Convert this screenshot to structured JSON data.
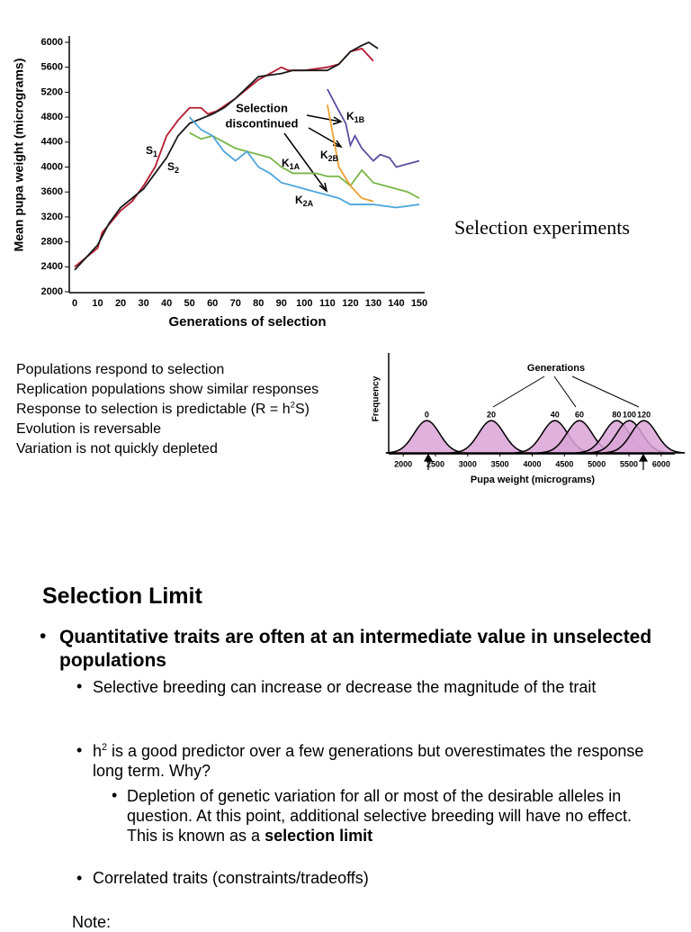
{
  "chart_data": [
    {
      "type": "line",
      "x_label": "Generations of selection",
      "y_label": "Mean pupa weight (micrograms)",
      "xlim": [
        0,
        150
      ],
      "ylim": [
        2000,
        6000
      ],
      "xticks": [
        0,
        10,
        20,
        30,
        40,
        50,
        60,
        70,
        80,
        90,
        100,
        110,
        120,
        130,
        140,
        150
      ],
      "yticks": [
        2000,
        2400,
        2800,
        3200,
        3600,
        4000,
        4400,
        4800,
        5200,
        5600,
        6000
      ],
      "annotation": [
        "Selection",
        "discontinued"
      ],
      "series": [
        {
          "name": "S1",
          "color": "#b5192f",
          "x": [
            0,
            5,
            10,
            12,
            20,
            25,
            30,
            35,
            37,
            40,
            45,
            50,
            55,
            58,
            62,
            70,
            80,
            90,
            93,
            100,
            110,
            115,
            120,
            125,
            130
          ],
          "values": [
            2400,
            2550,
            2700,
            2950,
            3300,
            3450,
            3700,
            4000,
            4200,
            4500,
            4750,
            4950,
            4950,
            4850,
            4900,
            5100,
            5400,
            5600,
            5550,
            5550,
            5600,
            5650,
            5850,
            5900,
            5700
          ]
        },
        {
          "name": "S2",
          "color": "#1a1a1a",
          "x": [
            0,
            10,
            15,
            20,
            25,
            30,
            35,
            40,
            45,
            50,
            60,
            65,
            70,
            80,
            90,
            95,
            100,
            110,
            115,
            120,
            125,
            128,
            132
          ],
          "values": [
            2350,
            2750,
            3100,
            3350,
            3500,
            3650,
            3900,
            4150,
            4500,
            4700,
            4850,
            4950,
            5100,
            5450,
            5500,
            5550,
            5550,
            5550,
            5650,
            5850,
            5950,
            6000,
            5900
          ]
        },
        {
          "name": "K1A",
          "color": "#7ab648",
          "x": [
            50,
            55,
            60,
            65,
            70,
            80,
            85,
            90,
            95,
            100,
            105,
            110,
            115,
            120,
            125,
            130,
            135,
            140,
            145,
            150
          ],
          "values": [
            4550,
            4450,
            4500,
            4400,
            4300,
            4200,
            4150,
            4000,
            3900,
            3900,
            3900,
            3850,
            3850,
            3700,
            3950,
            3750,
            3700,
            3650,
            3600,
            3500
          ]
        },
        {
          "name": "K2A",
          "color": "#4ea5dd",
          "x": [
            50,
            55,
            60,
            65,
            70,
            75,
            80,
            85,
            90,
            95,
            100,
            105,
            110,
            115,
            120,
            130,
            140,
            150
          ],
          "values": [
            4800,
            4600,
            4500,
            4250,
            4100,
            4250,
            4000,
            3900,
            3750,
            3700,
            3650,
            3600,
            3550,
            3500,
            3400,
            3400,
            3350,
            3400
          ]
        },
        {
          "name": "K1B",
          "color": "#5b4ea0",
          "x": [
            110,
            115,
            118,
            120,
            122,
            125,
            130,
            133,
            137,
            140,
            145,
            150
          ],
          "values": [
            5250,
            4900,
            4700,
            4350,
            4500,
            4300,
            4100,
            4200,
            4150,
            4000,
            4050,
            4100
          ]
        },
        {
          "name": "K2B",
          "color": "#f0a030",
          "x": [
            110,
            115,
            120,
            125,
            130
          ],
          "values": [
            5000,
            4000,
            3700,
            3500,
            3450
          ]
        }
      ]
    },
    {
      "type": "distribution",
      "title": "Generations",
      "x_label": "Pupa weight (micrograms)",
      "y_label": "Frequency",
      "color": "#d9a3d6",
      "categories": [
        "0",
        "20",
        "40",
        "60",
        "80",
        "100",
        "120"
      ],
      "values": [
        2366,
        3366,
        4352,
        4732,
        5310,
        5507,
        5732
      ],
      "xlim": [
        1775,
        6211
      ],
      "xticks": [
        2000,
        2500,
        3000,
        3500,
        4000,
        4500,
        5000,
        5500,
        6000
      ]
    }
  ],
  "caption": "Selection experiments",
  "notes": [
    "Populations respond to selection",
    "Replication populations show similar responses",
    [
      "Response to selection is predictable (R = h",
      "2",
      "S)"
    ],
    "Evolution is reversable",
    "Variation is not quickly depleted"
  ],
  "section": {
    "title": "Selection Limit",
    "bullet": "Quantitative traits are often at an intermediate value in unselected populations",
    "sub1": "Selective breeding can increase or decrease the magnitude of the trait",
    "sub2": [
      "h",
      "2",
      " is a good predictor over a few generations but overestimates the response long term. Why?"
    ],
    "subsub": [
      "Depletion of genetic variation for all or most of the desirable alleles in question. At this point, additional selective breeding will have no effect. This is known as a ",
      "selection limit"
    ],
    "sub3": "Correlated traits (constraints/tradeoffs)",
    "note": "Note:"
  }
}
